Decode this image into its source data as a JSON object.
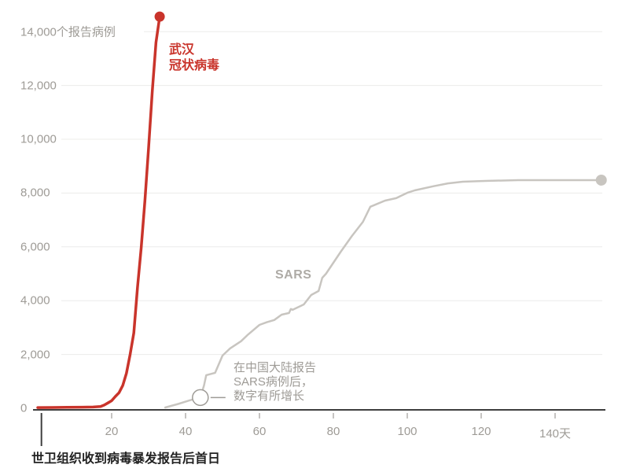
{
  "chart_data": {
    "type": "line",
    "title": "",
    "x_axis": {
      "tick_days": [
        20,
        40,
        60,
        80,
        100,
        120,
        140
      ],
      "tick_labels": [
        "20",
        "40",
        "60",
        "80",
        "100",
        "120",
        "140天"
      ],
      "origin_day": 1,
      "origin_note": "世卫组织收到病毒暴发报告后首日",
      "xlim": [
        0,
        155
      ]
    },
    "y_axis": {
      "tick_values": [
        0,
        2000,
        4000,
        6000,
        8000,
        10000,
        12000,
        14000
      ],
      "tick_labels": [
        "0",
        "2,000",
        "4,000",
        "6,000",
        "8,000",
        "10,000",
        "12,000",
        "14,000个报告病例"
      ],
      "ylim": [
        0,
        14750
      ],
      "grid": true
    },
    "series": [
      {
        "name": "武汉冠状病毒",
        "label_lines": [
          "武汉",
          "冠状病毒"
        ],
        "color": "#c9342b",
        "endpoint_dot": true,
        "points": [
          [
            0,
            27
          ],
          [
            4,
            30
          ],
          [
            8,
            38
          ],
          [
            12,
            42
          ],
          [
            15,
            48
          ],
          [
            17,
            65
          ],
          [
            18,
            121
          ],
          [
            19,
            200
          ],
          [
            20,
            282
          ],
          [
            21,
            440
          ],
          [
            22,
            580
          ],
          [
            23,
            845
          ],
          [
            24,
            1300
          ],
          [
            25,
            2000
          ],
          [
            26,
            2800
          ],
          [
            27,
            4500
          ],
          [
            28,
            5970
          ],
          [
            29,
            7710
          ],
          [
            30,
            9690
          ],
          [
            31,
            11790
          ],
          [
            32,
            13600
          ],
          [
            33,
            14557
          ]
        ]
      },
      {
        "name": "SARS",
        "label": "SARS",
        "color": "#c8c5c0",
        "endpoint_dot": true,
        "points": [
          [
            34.5,
            30
          ],
          [
            38,
            160
          ],
          [
            41,
            290
          ],
          [
            44,
            400
          ],
          [
            45,
            850
          ],
          [
            45.6,
            1230
          ],
          [
            48,
            1320
          ],
          [
            50,
            1960
          ],
          [
            52,
            2220
          ],
          [
            55,
            2490
          ],
          [
            57,
            2750
          ],
          [
            60,
            3100
          ],
          [
            62,
            3200
          ],
          [
            64,
            3280
          ],
          [
            66,
            3480
          ],
          [
            68,
            3540
          ],
          [
            68.5,
            3690
          ],
          [
            69,
            3660
          ],
          [
            72,
            3860
          ],
          [
            74,
            4210
          ],
          [
            76,
            4360
          ],
          [
            77,
            4850
          ],
          [
            78,
            5000
          ],
          [
            82,
            5820
          ],
          [
            85,
            6400
          ],
          [
            88,
            6930
          ],
          [
            90,
            7490
          ],
          [
            94,
            7720
          ],
          [
            97,
            7810
          ],
          [
            100,
            8010
          ],
          [
            102,
            8100
          ],
          [
            107,
            8250
          ],
          [
            111,
            8360
          ],
          [
            115,
            8420
          ],
          [
            121,
            8450
          ],
          [
            130,
            8480
          ],
          [
            152.5,
            8480
          ]
        ]
      }
    ],
    "annotation": {
      "text": "在中国大陆报告\nSARS病例后，\n数字有所增长",
      "circled_point_day": 44,
      "circled_point_value": 400
    },
    "colors": {
      "wuhan_red": "#c9342b",
      "sars_gray": "#c8c5c0",
      "sars_label_gray": "#aeaba6",
      "annotation_gray": "#9e9b96",
      "tick_label_gray": "#9e9b96",
      "gridline": "#ececea",
      "axis": "#3f3f3f",
      "axis_note_black": "#222222"
    }
  }
}
